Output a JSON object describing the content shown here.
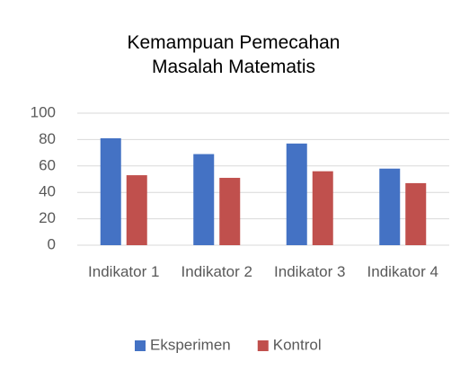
{
  "chart_data": {
    "type": "bar",
    "title": "Kemampuan Pemecahan Masalah Matematis",
    "categories": [
      "Indikator 1",
      "Indikator 2",
      "Indikator 3",
      "Indikator 4"
    ],
    "series": [
      {
        "name": "Eksperimen",
        "color": "#4472c4",
        "values": [
          81,
          69,
          77,
          58
        ]
      },
      {
        "name": "Kontrol",
        "color": "#c0504d",
        "values": [
          53,
          51,
          56,
          47
        ]
      }
    ],
    "ylim": [
      0,
      100
    ],
    "yticks": [
      0,
      20,
      40,
      60,
      80,
      100
    ],
    "grid": true,
    "legend": "bottom"
  }
}
